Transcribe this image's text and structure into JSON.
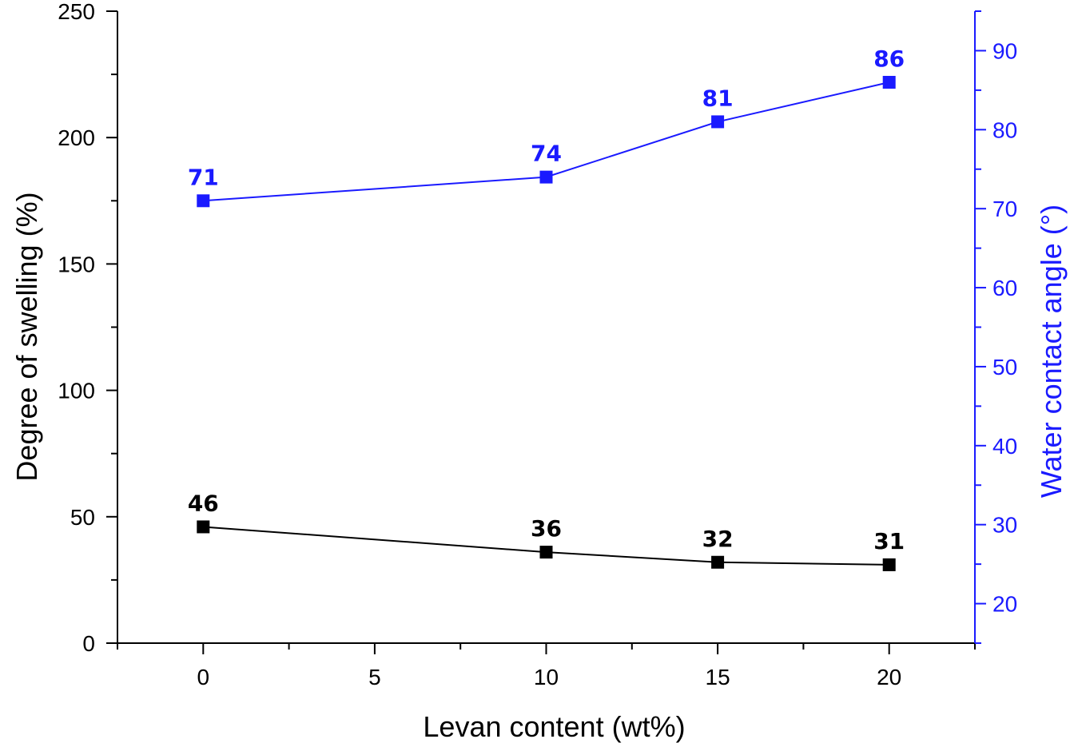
{
  "chart_data": {
    "type": "line",
    "x": [
      0,
      10,
      15,
      20
    ],
    "xlabel": "Levan content (wt%)",
    "xlim": [
      -2.5,
      22.5
    ],
    "xticks": [
      "0",
      "5",
      "10",
      "15",
      "20"
    ],
    "y_left": {
      "label": "Degree of swelling (%)",
      "lim": [
        0,
        250
      ],
      "ticks": [
        "0",
        "50",
        "100",
        "150",
        "200",
        "250"
      ]
    },
    "y_right": {
      "label": "Water contact angle (°)",
      "lim": [
        15,
        95
      ],
      "ticks": [
        "20",
        "30",
        "40",
        "50",
        "60",
        "70",
        "80",
        "90"
      ]
    },
    "series": [
      {
        "axis": "left",
        "values": [
          46,
          36,
          32,
          31
        ],
        "labels": [
          "46",
          "36",
          "32",
          "31"
        ],
        "color": "#000000",
        "marker": "square"
      },
      {
        "axis": "right",
        "values": [
          71,
          74,
          81,
          86
        ],
        "labels": [
          "71",
          "74",
          "81",
          "86"
        ],
        "color": "#1a1aff",
        "marker": "square"
      }
    ],
    "grid": false,
    "legend": "none"
  }
}
